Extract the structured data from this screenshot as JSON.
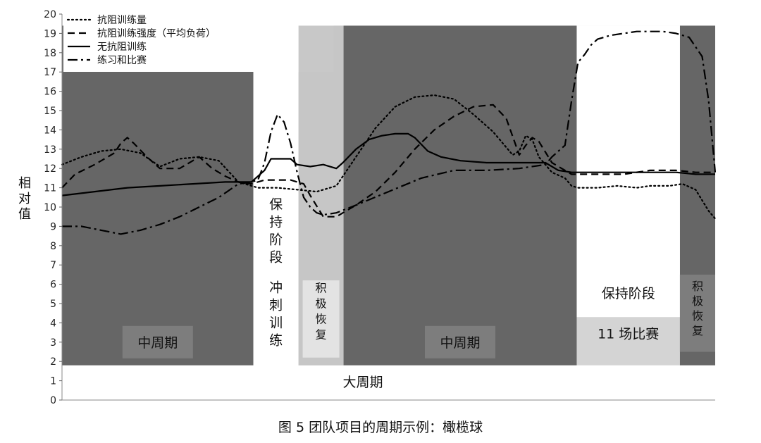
{
  "caption": "图 5 团队项目的周期示例：橄榄球",
  "chart_data": {
    "type": "line",
    "title": "",
    "xlabel": "",
    "ylabel": "相对值",
    "ylim": [
      0,
      20
    ],
    "yticks": [
      0,
      1,
      2,
      3,
      4,
      5,
      6,
      7,
      8,
      9,
      10,
      11,
      12,
      13,
      14,
      15,
      16,
      17,
      18,
      19,
      20
    ],
    "xlim": [
      0,
      100
    ],
    "legend_position": "top-left",
    "phases": [
      {
        "name": "mid1",
        "label": "中周期",
        "x0": 0,
        "x1": 29.3,
        "color": "#666666",
        "label_vertical": false
      },
      {
        "name": "sprint",
        "label": "冲刺训练",
        "x0": 29.3,
        "x1": 36.2,
        "color": "#ffffff",
        "label_vertical": true
      },
      {
        "name": "active1",
        "label": "积极恢复",
        "x0": 36.2,
        "x1": 43.1,
        "color": "#c8c8c8",
        "label_vertical": true
      },
      {
        "name": "mid2",
        "label": "中周期",
        "x0": 43.1,
        "x1": 78.8,
        "color": "#666666",
        "label_vertical": false
      },
      {
        "name": "games",
        "label": "11 场比赛",
        "x0": 78.8,
        "x1": 94.6,
        "color": "#d4d4d4",
        "label_vertical": false
      },
      {
        "name": "active2",
        "label": "积极恢复",
        "x0": 94.6,
        "x1": 100,
        "color": "#666666",
        "label_vertical": true
      }
    ],
    "annotations": [
      {
        "name": "maintain-phase-1",
        "text": "保持阶段",
        "vertical": true
      },
      {
        "name": "maintain-phase-2",
        "text": "保持阶段",
        "vertical": false
      },
      {
        "name": "macrocycle",
        "text": "大周期",
        "vertical": false
      }
    ],
    "series": [
      {
        "name": "抗阻训练量",
        "style": "dotted",
        "x": [
          0,
          3,
          6,
          9,
          12,
          15,
          18,
          21,
          24,
          27,
          30,
          33,
          36,
          39,
          42,
          45,
          48,
          51,
          54,
          57,
          60,
          63,
          66,
          69,
          70,
          71,
          72,
          73,
          75,
          77,
          78,
          79,
          80,
          82,
          85,
          88,
          90,
          93,
          95,
          97,
          99,
          100
        ],
        "y": [
          12.2,
          12.6,
          12.9,
          13.0,
          12.8,
          12.1,
          12.5,
          12.6,
          12.4,
          11.3,
          11.0,
          11.0,
          10.9,
          10.8,
          11.1,
          12.6,
          14.1,
          15.2,
          15.7,
          15.8,
          15.6,
          14.8,
          13.9,
          12.7,
          12.9,
          13.7,
          13.5,
          12.6,
          11.8,
          11.5,
          11.1,
          11.0,
          11.0,
          11.0,
          11.1,
          11.0,
          11.1,
          11.1,
          11.2,
          10.9,
          9.8,
          9.4
        ]
      },
      {
        "name": "抗阻训练强度（平均负荷）",
        "style": "dashed",
        "x": [
          0,
          2,
          5,
          8,
          9,
          10,
          11,
          13,
          15,
          18,
          21,
          23,
          25,
          27,
          29,
          31,
          33,
          35,
          37,
          38,
          40,
          42,
          45,
          48,
          51,
          54,
          57,
          60,
          63,
          66,
          68,
          70,
          71,
          72,
          73,
          75,
          78,
          80,
          83,
          86,
          90,
          94,
          97,
          100
        ],
        "y": [
          11.0,
          11.7,
          12.2,
          12.8,
          13.3,
          13.6,
          13.3,
          12.6,
          12.0,
          12.0,
          12.6,
          12.0,
          11.6,
          11.3,
          11.2,
          11.4,
          11.4,
          11.4,
          11.2,
          10.6,
          9.5,
          9.5,
          10.1,
          10.8,
          11.8,
          13.0,
          14.0,
          14.7,
          15.2,
          15.3,
          14.6,
          12.7,
          13.2,
          13.6,
          13.4,
          12.3,
          11.7,
          11.7,
          11.7,
          11.7,
          11.9,
          11.9,
          11.8,
          11.8
        ]
      },
      {
        "name": "无抗阻训练",
        "style": "solid",
        "x": [
          0,
          5,
          10,
          15,
          20,
          25,
          29,
          31,
          32,
          33,
          35,
          36,
          38,
          40,
          42,
          43,
          45,
          47,
          49,
          51,
          53,
          54,
          56,
          58,
          61,
          65,
          70,
          74,
          76,
          78,
          82,
          86,
          90,
          94,
          97,
          100
        ],
        "y": [
          10.6,
          10.8,
          11.0,
          11.1,
          11.2,
          11.3,
          11.3,
          11.9,
          12.5,
          12.5,
          12.5,
          12.2,
          12.1,
          12.2,
          12.0,
          12.3,
          13.0,
          13.5,
          13.7,
          13.8,
          13.8,
          13.6,
          12.9,
          12.6,
          12.4,
          12.3,
          12.3,
          12.3,
          11.9,
          11.8,
          11.8,
          11.8,
          11.8,
          11.8,
          11.7,
          11.7
        ]
      },
      {
        "name": "练习和比赛",
        "style": "dashdot",
        "x": [
          0,
          3,
          6,
          9,
          12,
          15,
          18,
          21,
          24,
          27,
          29,
          30,
          31,
          32,
          33,
          34,
          35,
          36,
          37,
          38,
          39,
          40,
          42,
          45,
          50,
          55,
          60,
          65,
          70,
          74,
          75,
          77,
          78,
          79,
          80,
          81,
          82,
          84,
          86,
          88,
          90,
          92,
          94,
          96,
          98,
          99,
          100
        ],
        "y": [
          9.0,
          9.0,
          8.8,
          8.6,
          8.8,
          9.1,
          9.5,
          10.0,
          10.5,
          11.2,
          11.3,
          11.4,
          12.3,
          13.9,
          14.8,
          14.4,
          13.3,
          11.8,
          10.5,
          10.0,
          9.7,
          9.6,
          9.7,
          10.1,
          10.8,
          11.5,
          11.9,
          11.9,
          12.0,
          12.2,
          12.6,
          13.2,
          15.5,
          17.5,
          17.9,
          18.4,
          18.7,
          18.9,
          19.0,
          19.1,
          19.1,
          19.1,
          19.0,
          18.8,
          17.8,
          15.5,
          11.8
        ]
      }
    ]
  }
}
